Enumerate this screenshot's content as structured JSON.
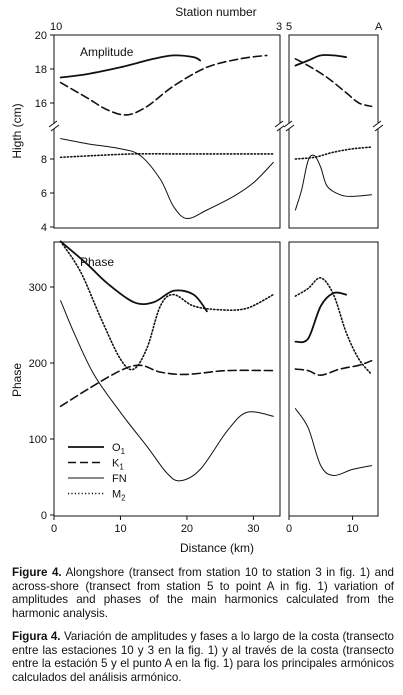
{
  "chart_data": {
    "type": "line",
    "x_top_label": "Station number",
    "xlabel": "Distance (km)",
    "station_markers": [
      {
        "text": "10"
      },
      {
        "text": "3"
      },
      {
        "text": "5"
      },
      {
        "text": "A"
      }
    ],
    "left_xlim": [
      0,
      34
    ],
    "right_xlim": [
      0,
      14
    ],
    "left_xticks": [
      0,
      10,
      20,
      30
    ],
    "right_xticks": [
      0,
      10
    ],
    "amplitude": {
      "panel_label": "Amplitude",
      "ylabel": "Higth (cm)",
      "upper_ylim": [
        15,
        20
      ],
      "upper_yticks": [
        16,
        18,
        20
      ],
      "lower_ylim": [
        4,
        9.3
      ],
      "lower_yticks": [
        4,
        6,
        8
      ],
      "upper_series": [
        {
          "legend_index": 0,
          "left": [
            [
              1,
              17.5
            ],
            [
              5,
              17.7
            ],
            [
              10,
              18.1
            ],
            [
              15,
              18.6
            ],
            [
              18,
              18.8
            ],
            [
              21,
              18.7
            ],
            [
              22,
              18.5
            ]
          ],
          "right": [
            [
              1,
              18.2
            ],
            [
              3,
              18.5
            ],
            [
              5,
              18.8
            ],
            [
              7,
              18.8
            ],
            [
              9,
              18.7
            ]
          ]
        },
        {
          "legend_index": 1,
          "left": [
            [
              1,
              17.2
            ],
            [
              5,
              16.3
            ],
            [
              8,
              15.6
            ],
            [
              11,
              15.3
            ],
            [
              14,
              15.8
            ],
            [
              18,
              17.0
            ],
            [
              23,
              18.1
            ],
            [
              28,
              18.6
            ],
            [
              32,
              18.8
            ]
          ],
          "right": [
            [
              1,
              18.6
            ],
            [
              3,
              18.2
            ],
            [
              6,
              17.5
            ],
            [
              9,
              16.6
            ],
            [
              11,
              16.0
            ],
            [
              13,
              15.8
            ]
          ]
        }
      ],
      "lower_series": [
        {
          "legend_index": 2,
          "left": [
            [
              1,
              9.2
            ],
            [
              5,
              8.9
            ],
            [
              10,
              8.6
            ],
            [
              13,
              8.2
            ],
            [
              16,
              6.8
            ],
            [
              18,
              5.2
            ],
            [
              20,
              4.5
            ],
            [
              23,
              5.0
            ],
            [
              27,
              5.8
            ],
            [
              30,
              6.6
            ],
            [
              33,
              7.8
            ]
          ],
          "right": [
            [
              1,
              5.0
            ],
            [
              2,
              6.2
            ],
            [
              3,
              7.9
            ],
            [
              4,
              8.2
            ],
            [
              5,
              7.5
            ],
            [
              6,
              6.4
            ],
            [
              8,
              5.9
            ],
            [
              10,
              5.8
            ],
            [
              13,
              5.9
            ]
          ]
        },
        {
          "legend_index": 3,
          "left": [
            [
              1,
              8.1
            ],
            [
              6,
              8.2
            ],
            [
              12,
              8.3
            ],
            [
              18,
              8.3
            ],
            [
              25,
              8.3
            ],
            [
              33,
              8.3
            ]
          ],
          "right": [
            [
              1,
              8.0
            ],
            [
              4,
              8.1
            ],
            [
              7,
              8.4
            ],
            [
              10,
              8.6
            ],
            [
              13,
              8.7
            ]
          ]
        }
      ]
    },
    "phase": {
      "panel_label": "Phase",
      "ylabel": "Phase",
      "ylim": [
        0,
        365
      ],
      "yticks": [
        0,
        100,
        200,
        300
      ],
      "series": [
        {
          "legend_index": 0,
          "left": [
            [
              1,
              360
            ],
            [
              5,
              330
            ],
            [
              8,
              305
            ],
            [
              12,
              280
            ],
            [
              15,
              280
            ],
            [
              18,
              295
            ],
            [
              21,
              290
            ],
            [
              23,
              268
            ]
          ],
          "right": [
            [
              1,
              228
            ],
            [
              3,
              232
            ],
            [
              5,
              275
            ],
            [
              7,
              292
            ],
            [
              9,
              290
            ]
          ]
        },
        {
          "legend_index": 1,
          "left": [
            [
              1,
              143
            ],
            [
              5,
              165
            ],
            [
              10,
              190
            ],
            [
              13,
              197
            ],
            [
              16,
              188
            ],
            [
              20,
              185
            ],
            [
              26,
              190
            ],
            [
              33,
              190
            ]
          ],
          "right": [
            [
              1,
              192
            ],
            [
              3,
              190
            ],
            [
              5,
              184
            ],
            [
              8,
              192
            ],
            [
              11,
              197
            ],
            [
              13,
              203
            ]
          ]
        },
        {
          "legend_index": 2,
          "left": [
            [
              1,
              282
            ],
            [
              3,
              240
            ],
            [
              6,
              185
            ],
            [
              10,
              135
            ],
            [
              14,
              90
            ],
            [
              17,
              55
            ],
            [
              19,
              45
            ],
            [
              22,
              60
            ],
            [
              26,
              110
            ],
            [
              29,
              135
            ],
            [
              33,
              130
            ]
          ],
          "right": [
            [
              1,
              140
            ],
            [
              3,
              115
            ],
            [
              5,
              65
            ],
            [
              7,
              52
            ],
            [
              10,
              60
            ],
            [
              13,
              65
            ]
          ]
        },
        {
          "legend_index": 3,
          "left": [
            [
              1,
              360
            ],
            [
              4,
              320
            ],
            [
              7,
              260
            ],
            [
              10,
              205
            ],
            [
              12,
              192
            ],
            [
              14,
              220
            ],
            [
              16,
              275
            ],
            [
              18,
              290
            ],
            [
              21,
              275
            ],
            [
              25,
              270
            ],
            [
              29,
              272
            ],
            [
              33,
              290
            ]
          ],
          "right": [
            [
              1,
              288
            ],
            [
              3,
              298
            ],
            [
              5,
              312
            ],
            [
              7,
              290
            ],
            [
              9,
              240
            ],
            [
              11,
              205
            ],
            [
              13,
              185
            ]
          ]
        }
      ]
    },
    "legend": [
      {
        "name": "O1",
        "main": "O",
        "sub": "1",
        "dash": "solid"
      },
      {
        "name": "K1",
        "main": "K",
        "sub": "1",
        "dash": "dashed"
      },
      {
        "name": "FN",
        "main": "FN",
        "sub": "",
        "dash": "solid"
      },
      {
        "name": "M2",
        "main": "M",
        "sub": "2",
        "dash": "dotted"
      }
    ]
  },
  "caption_en": {
    "label": "Figure 4.",
    "text": " Alongshore (transect from station 10 to station 3 in fig. 1) and across-shore (transect from station 5 to point A in fig. 1) variation of amplitudes and phases of the main harmonics calculated from the harmonic analysis."
  },
  "caption_es": {
    "label": "Figura 4.",
    "text": " Variación de amplitudes y fases a lo largo de la costa (transecto entre las estaciones 10 y 3 en la fig. 1) y al través de la costa (transecto entre la estación 5 y el punto A en la fig. 1) para los principales armónicos calculados del análisis armónico."
  }
}
